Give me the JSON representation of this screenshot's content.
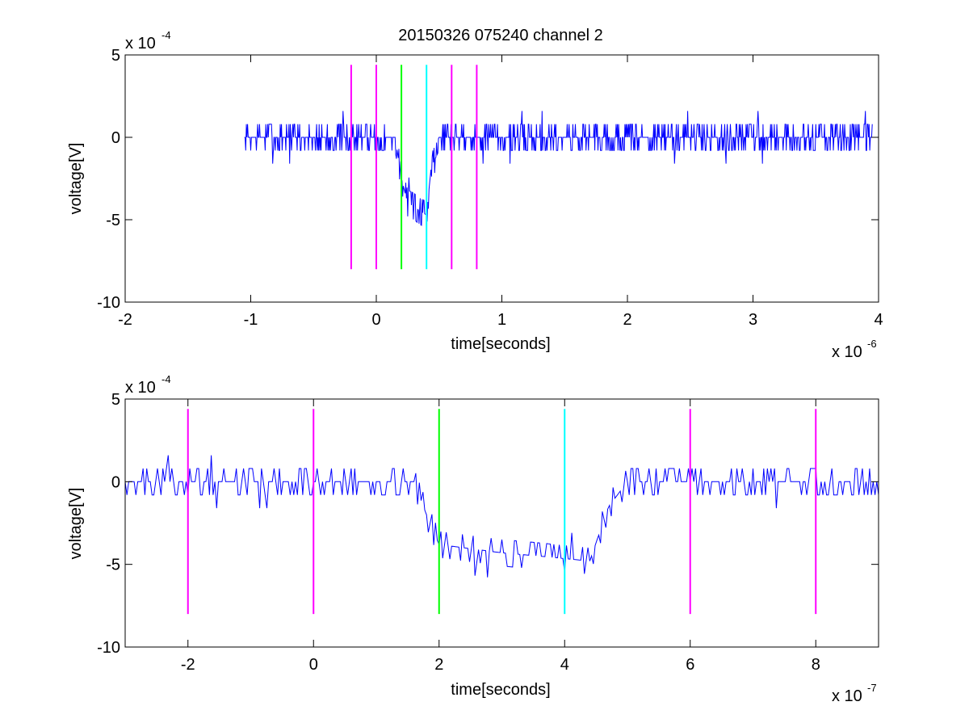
{
  "figure_title": "20150326 075240 channel 2",
  "chart_data": [
    {
      "type": "line",
      "title": "20150326 075240 channel 2",
      "xlabel": "time[seconds]",
      "ylabel": "voltage[V]",
      "x_exponent_label": "x 10",
      "x_exponent": "-6",
      "y_exponent_label": "x 10",
      "y_exponent": "-4",
      "xlim": [
        -2,
        4
      ],
      "ylim": [
        -10,
        5
      ],
      "xticks": [
        -2,
        -1,
        0,
        1,
        2,
        3,
        4
      ],
      "xtick_labels": [
        "-2",
        "-1",
        "0",
        "1",
        "2",
        "3",
        "4"
      ],
      "yticks": [
        -10,
        -5,
        0,
        5
      ],
      "ytick_labels": [
        "-10",
        "-5",
        "0",
        "5"
      ],
      "grid": false,
      "series": [
        {
          "color": "#0000ff",
          "x_range": [
            -1.05,
            3.95
          ],
          "baseline_points": [
            [
              -1.05,
              0
            ],
            [
              0.15,
              0
            ],
            [
              0.2,
              -2.5
            ],
            [
              0.25,
              -4
            ],
            [
              0.3,
              -4.2
            ],
            [
              0.35,
              -4.5
            ],
            [
              0.4,
              -4.7
            ],
            [
              0.45,
              -0.8
            ],
            [
              0.5,
              0
            ],
            [
              3.95,
              0
            ]
          ],
          "noise_amplitude": 1.6
        }
      ],
      "markers": [
        {
          "x": -0.2,
          "y_from": -8,
          "y_to": 4.4,
          "color": "#ff00ff"
        },
        {
          "x": 0.0,
          "y_from": -8,
          "y_to": 4.4,
          "color": "#ff00ff"
        },
        {
          "x": 0.2,
          "y_from": -8,
          "y_to": 4.4,
          "color": "#00ff00"
        },
        {
          "x": 0.4,
          "y_from": -8,
          "y_to": 4.4,
          "color": "#00ffff"
        },
        {
          "x": 0.6,
          "y_from": -8,
          "y_to": 4.4,
          "color": "#ff00ff"
        },
        {
          "x": 0.8,
          "y_from": -8,
          "y_to": 4.4,
          "color": "#ff00ff"
        }
      ]
    },
    {
      "type": "line",
      "title": "",
      "xlabel": "time[seconds]",
      "ylabel": "voltage[V]",
      "x_exponent_label": "x 10",
      "x_exponent": "-7",
      "y_exponent_label": "x 10",
      "y_exponent": "-4",
      "xlim": [
        -3,
        9
      ],
      "ylim": [
        -10,
        5
      ],
      "xticks": [
        -2,
        0,
        2,
        4,
        6,
        8
      ],
      "xtick_labels": [
        "-2",
        "0",
        "2",
        "4",
        "6",
        "8"
      ],
      "yticks": [
        -10,
        -5,
        0,
        5
      ],
      "ytick_labels": [
        "-10",
        "-5",
        "0",
        "5"
      ],
      "grid": false,
      "series": [
        {
          "color": "#0000ff",
          "x_range": [
            -3,
            9
          ],
          "baseline_points": [
            [
              -3,
              0
            ],
            [
              1.6,
              0
            ],
            [
              1.8,
              -2
            ],
            [
              2.0,
              -3.8
            ],
            [
              2.4,
              -4
            ],
            [
              3.0,
              -4.3
            ],
            [
              3.6,
              -4.5
            ],
            [
              4.4,
              -4.8
            ],
            [
              4.7,
              -1.5
            ],
            [
              5.0,
              0
            ],
            [
              9.0,
              0
            ]
          ],
          "noise_amplitude": 1.5
        }
      ],
      "markers": [
        {
          "x": -2,
          "y_from": -8,
          "y_to": 4.4,
          "color": "#ff00ff"
        },
        {
          "x": 0,
          "y_from": -8,
          "y_to": 4.4,
          "color": "#ff00ff"
        },
        {
          "x": 2,
          "y_from": -8,
          "y_to": 4.4,
          "color": "#00ff00"
        },
        {
          "x": 4,
          "y_from": -8,
          "y_to": 4.4,
          "color": "#00ffff"
        },
        {
          "x": 6,
          "y_from": -8,
          "y_to": 4.4,
          "color": "#ff00ff"
        },
        {
          "x": 8,
          "y_from": -8,
          "y_to": 4.4,
          "color": "#ff00ff"
        }
      ]
    }
  ]
}
